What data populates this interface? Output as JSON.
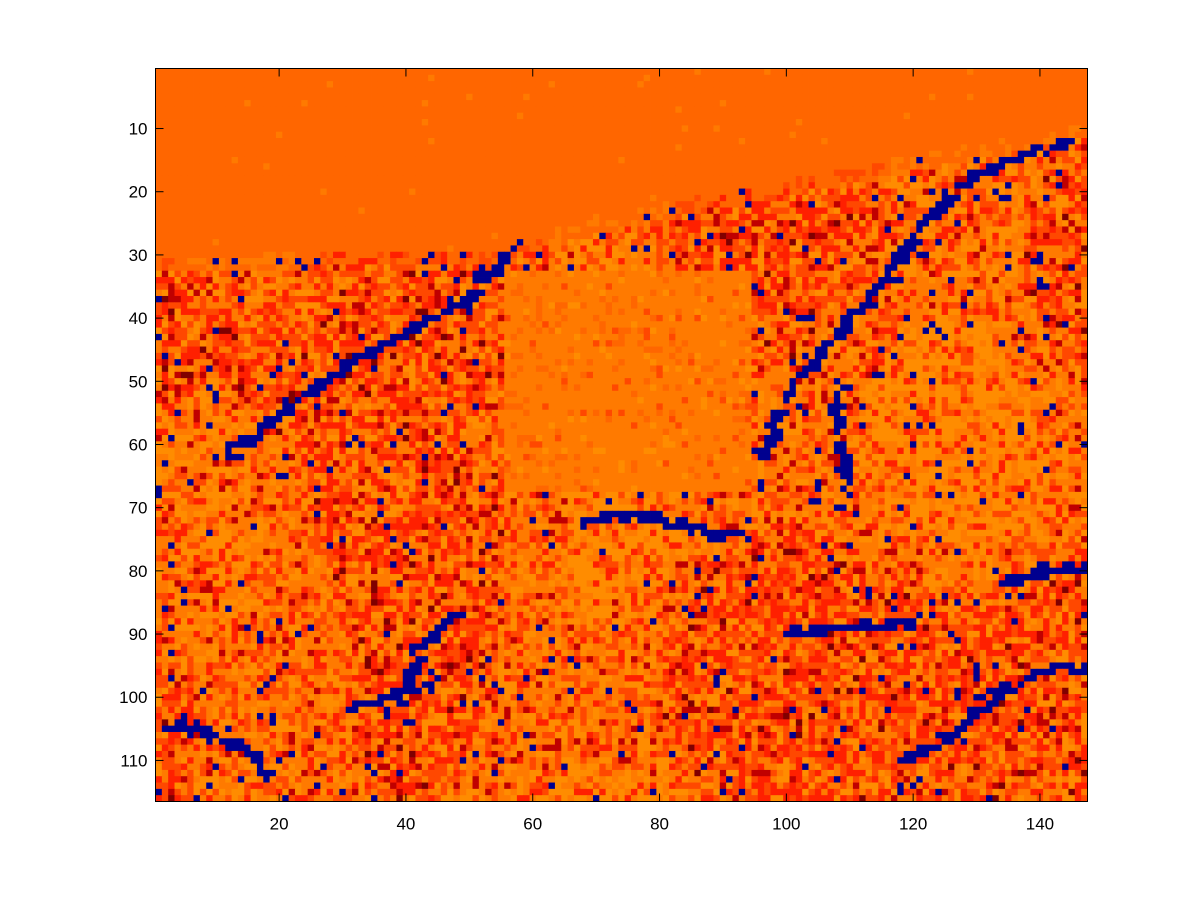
{
  "chart_data": {
    "type": "heatmap",
    "title": "",
    "xlabel": "",
    "ylabel": "",
    "xlim": [
      0.5,
      147.5
    ],
    "ylim": [
      0.5,
      116.5
    ],
    "y_direction": "reverse",
    "grid": false,
    "legend": "none",
    "colorbar": false,
    "n_cols": 147,
    "n_rows": 116,
    "x_ticks": [
      20,
      40,
      60,
      80,
      100,
      120,
      140
    ],
    "x_tick_labels": [
      "20",
      "40",
      "60",
      "80",
      "100",
      "120",
      "140"
    ],
    "y_ticks": [
      10,
      20,
      30,
      40,
      50,
      60,
      70,
      80,
      90,
      100,
      110
    ],
    "y_tick_labels": [
      "10",
      "20",
      "30",
      "40",
      "50",
      "60",
      "70",
      "80",
      "90",
      "100",
      "110"
    ],
    "colormap": [
      "#00008f",
      "#800000",
      "#c00000",
      "#ff2000",
      "#ff4800",
      "#ff6600",
      "#ff7a00",
      "#ff8c00"
    ],
    "value_range": [
      0,
      7
    ],
    "description_of_values": "Indexed class map: sky region (rows 1-~30 on the left, sloping to ~10 on the right) is uniform class 5; terrain below is a noisy mix of classes 2-7 with scattered class-0 (dark blue) edge pixels forming curved streaks."
  }
}
